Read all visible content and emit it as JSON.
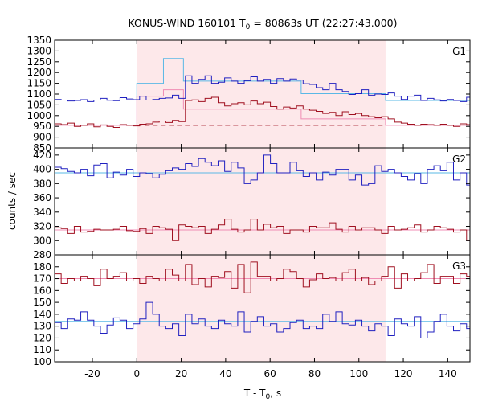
{
  "chart_data": {
    "type": "line",
    "title_main": "KONUS-WIND 160101 T",
    "title_sub": "0",
    "title_rest": " = 80863s UT (22:27:43.000)",
    "xlabel_main": "T - T",
    "xlabel_sub": "0",
    "xlabel_rest": ", s",
    "ylabel": "counts / sec",
    "xlim": [
      -37,
      150
    ],
    "xticks": [
      -20,
      0,
      20,
      40,
      60,
      80,
      100,
      120,
      140
    ],
    "highlight_interval": [
      0,
      112
    ],
    "colors": {
      "blue": "#2020c0",
      "red": "#a01020",
      "cyan": "#5ab8e6",
      "pink": "#f08cb4",
      "shade": "#fde8ea"
    },
    "panels": [
      {
        "name": "G1",
        "ylim": [
          850,
          1350
        ],
        "yticks": [
          850,
          900,
          950,
          1000,
          1050,
          1100,
          1150,
          1200,
          1250,
          1300,
          1350
        ],
        "series": [
          {
            "name": "G1 blue",
            "color": "blue",
            "x0": -37,
            "step": 2.944,
            "values": [
              1075,
              1072,
              1068,
              1070,
              1074,
              1065,
              1072,
              1080,
              1071,
              1069,
              1083,
              1077,
              1074,
              1090,
              1072,
              1075,
              1080,
              1082,
              1095,
              1080,
              1185,
              1150,
              1168,
              1185,
              1150,
              1155,
              1175,
              1160,
              1150,
              1162,
              1180,
              1160,
              1168,
              1150,
              1172,
              1160,
              1170,
              1165,
              1148,
              1145,
              1130,
              1120,
              1150,
              1120,
              1112,
              1098,
              1102,
              1120,
              1095,
              1100,
              1098,
              1105,
              1090,
              1075,
              1090,
              1095,
              1070,
              1080,
              1073,
              1068,
              1075,
              1070,
              1065,
              1085
            ]
          },
          {
            "name": "G1 red",
            "color": "red",
            "x0": -37,
            "step": 2.944,
            "values": [
              962,
              958,
              965,
              950,
              955,
              962,
              948,
              957,
              950,
              945,
              958,
              955,
              952,
              960,
              962,
              970,
              975,
              968,
              978,
              972,
              1070,
              1073,
              1065,
              1080,
              1085,
              1060,
              1045,
              1055,
              1060,
              1050,
              1068,
              1055,
              1062,
              1042,
              1030,
              1040,
              1035,
              1045,
              1030,
              1025,
              1020,
              1010,
              1015,
              1000,
              1018,
              1005,
              1010,
              1000,
              995,
              990,
              995,
              985,
              970,
              965,
              960,
              955,
              960,
              958,
              955,
              960,
              955,
              950,
              962,
              958
            ]
          }
        ],
        "fits": [
          {
            "name": "G1 blue fit",
            "color": "cyan",
            "dashed": false,
            "points": [
              [
                -37,
                1072
              ],
              [
                0,
                1072
              ],
              [
                0,
                1150
              ],
              [
                12,
                1150
              ],
              [
                12,
                1265
              ],
              [
                21,
                1265
              ],
              [
                21,
                1160
              ],
              [
                74,
                1160
              ],
              [
                74,
                1102
              ],
              [
                112,
                1102
              ],
              [
                112,
                1070
              ],
              [
                150,
                1070
              ]
            ]
          },
          {
            "name": "G1 blue background",
            "color": "blue",
            "dashed": true,
            "points": [
              [
                0,
                1072
              ],
              [
                112,
                1072
              ]
            ]
          },
          {
            "name": "G1 red fit",
            "color": "pink",
            "dashed": false,
            "points": [
              [
                -37,
                955
              ],
              [
                0,
                955
              ],
              [
                0,
                1090
              ],
              [
                12,
                1090
              ],
              [
                12,
                1120
              ],
              [
                21,
                1120
              ],
              [
                21,
                1030
              ],
              [
                74,
                1030
              ],
              [
                74,
                985
              ],
              [
                112,
                985
              ],
              [
                112,
                955
              ],
              [
                150,
                955
              ]
            ]
          },
          {
            "name": "G1 red background",
            "color": "red",
            "dashed": true,
            "points": [
              [
                0,
                955
              ],
              [
                112,
                955
              ]
            ]
          }
        ]
      },
      {
        "name": "G2",
        "ylim": [
          280,
          430
        ],
        "yticks": [
          280,
          300,
          320,
          340,
          360,
          380,
          400,
          420
        ],
        "series": [
          {
            "name": "G2 blue",
            "color": "blue",
            "x0": -37,
            "step": 2.944,
            "values": [
              403,
              401,
              397,
              395,
              400,
              391,
              406,
              408,
              388,
              396,
              392,
              400,
              390,
              395,
              394,
              388,
              393,
              398,
              402,
              400,
              408,
              404,
              415,
              410,
              405,
              412,
              397,
              410,
              402,
              380,
              385,
              395,
              420,
              408,
              395,
              395,
              410,
              398,
              390,
              395,
              385,
              396,
              392,
              400,
              400,
              385,
              392,
              378,
              380,
              405,
              397,
              400,
              395,
              390,
              385,
              394,
              380,
              400,
              405,
              398,
              410,
              385,
              395,
              378
            ]
          },
          {
            "name": "G2 red",
            "color": "red",
            "x0": -37,
            "step": 2.944,
            "values": [
              318,
              317,
              310,
              320,
              312,
              313,
              316,
              315,
              315,
              316,
              320,
              314,
              313,
              317,
              310,
              320,
              318,
              316,
              300,
              322,
              320,
              318,
              320,
              310,
              316,
              322,
              330,
              316,
              312,
              315,
              330,
              315,
              323,
              318,
              320,
              310,
              315,
              315,
              312,
              320,
              318,
              318,
              325,
              316,
              312,
              320,
              315,
              318,
              318,
              315,
              310,
              320,
              315,
              316,
              318,
              322,
              312,
              315,
              320,
              318,
              316,
              312,
              315,
              300
            ]
          }
        ],
        "fits": [
          {
            "name": "G2 blue fit",
            "color": "cyan",
            "dashed": false,
            "points": [
              [
                -37,
                395
              ],
              [
                150,
                395
              ]
            ]
          },
          {
            "name": "G2 red fit",
            "color": "pink",
            "dashed": false,
            "points": [
              [
                -37,
                315
              ],
              [
                150,
                315
              ]
            ]
          }
        ]
      },
      {
        "name": "G3",
        "ylim": [
          100,
          190
        ],
        "yticks": [
          100,
          110,
          120,
          130,
          140,
          150,
          160,
          170,
          180
        ],
        "series": [
          {
            "name": "G3 red",
            "color": "red",
            "x0": -37,
            "step": 2.944,
            "values": [
              174,
              166,
              170,
              168,
              172,
              170,
              164,
              178,
              170,
              172,
              175,
              168,
              170,
              166,
              172,
              170,
              168,
              178,
              173,
              168,
              182,
              165,
              170,
              163,
              172,
              171,
              176,
              162,
              182,
              158,
              184,
              172,
              172,
              168,
              170,
              178,
              176,
              170,
              163,
              169,
              174,
              170,
              171,
              168,
              175,
              178,
              168,
              171,
              165,
              168,
              172,
              180,
              162,
              174,
              168,
              170,
              175,
              182,
              166,
              172,
              172,
              166,
              174,
              172
            ]
          },
          {
            "name": "G3 red fit",
            "color": "red",
            "x0": -37,
            "step": 2.944,
            "hidden": true,
            "values": []
          },
          {
            "name": "G3 blue",
            "color": "blue",
            "x0": -37,
            "step": 2.944,
            "values": [
              133,
              128,
              136,
              135,
              142,
              135,
              130,
              124,
              131,
              137,
              135,
              128,
              132,
              136,
              150,
              140,
              130,
              128,
              132,
              122,
              140,
              132,
              136,
              130,
              128,
              135,
              132,
              130,
              142,
              125,
              134,
              138,
              130,
              132,
              125,
              128,
              133,
              135,
              128,
              130,
              128,
              140,
              134,
              142,
              132,
              131,
              135,
              130,
              126,
              132,
              130,
              122,
              136,
              132,
              130,
              138,
              120,
              125,
              134,
              140,
              130,
              126,
              132,
              128
            ]
          }
        ],
        "fits": [
          {
            "name": "G3 red fit line",
            "color": "pink",
            "dashed": false,
            "points": [
              [
                -37,
                170
              ],
              [
                150,
                170
              ]
            ]
          },
          {
            "name": "G3 blue fit line",
            "color": "cyan",
            "dashed": false,
            "points": [
              [
                -37,
                134
              ],
              [
                150,
                134
              ]
            ]
          }
        ]
      }
    ]
  }
}
